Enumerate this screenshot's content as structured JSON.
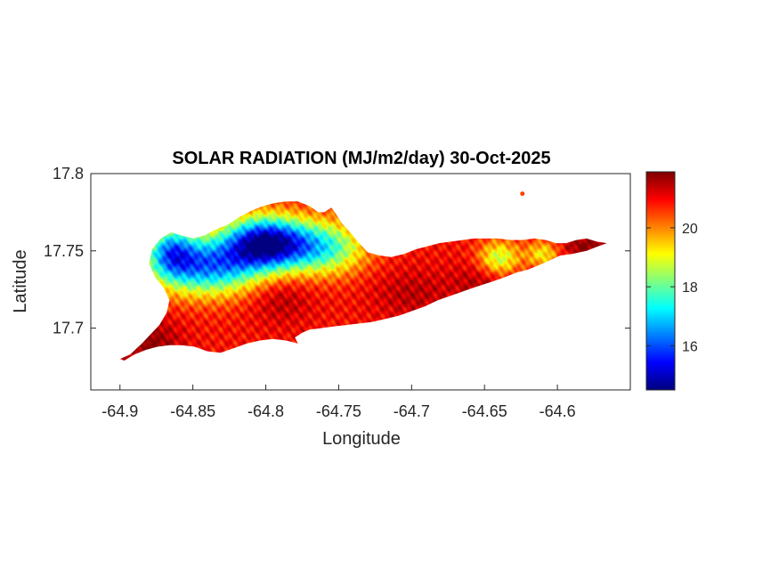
{
  "chart_data": {
    "type": "heatmap",
    "title": "SOLAR RADIATION (MJ/m2/day) 30-Oct-2025",
    "xlabel": "Longitude",
    "ylabel": "Latitude",
    "xlim": [
      -64.92,
      -64.55
    ],
    "ylim": [
      17.66,
      17.8
    ],
    "x_ticks": [
      -64.9,
      -64.85,
      -64.8,
      -64.75,
      -64.7,
      -64.65,
      -64.6
    ],
    "x_tick_labels": [
      "-64.9",
      "-64.85",
      "-64.8",
      "-64.75",
      "-64.7",
      "-64.65",
      "-64.6"
    ],
    "y_ticks": [
      17.7,
      17.75,
      17.8
    ],
    "y_tick_labels": [
      "17.7",
      "17.75",
      "17.8"
    ],
    "colorbar": {
      "colormap": "jet",
      "range": [
        14.5,
        21.9
      ],
      "ticks": [
        16,
        18,
        20
      ],
      "tick_labels": [
        "16",
        "18",
        "20"
      ]
    },
    "grid": false,
    "island_outline": [
      [
        -64.9,
        17.68
      ],
      [
        -64.893,
        17.683
      ],
      [
        -64.885,
        17.69
      ],
      [
        -64.878,
        17.697
      ],
      [
        -64.873,
        17.702
      ],
      [
        -64.868,
        17.71
      ],
      [
        -64.866,
        17.718
      ],
      [
        -64.87,
        17.726
      ],
      [
        -64.876,
        17.733
      ],
      [
        -64.88,
        17.742
      ],
      [
        -64.878,
        17.751
      ],
      [
        -64.872,
        17.758
      ],
      [
        -64.865,
        17.762
      ],
      [
        -64.858,
        17.76
      ],
      [
        -64.85,
        17.758
      ],
      [
        -64.842,
        17.76
      ],
      [
        -64.834,
        17.764
      ],
      [
        -64.826,
        17.767
      ],
      [
        -64.818,
        17.772
      ],
      [
        -64.81,
        17.776
      ],
      [
        -64.802,
        17.779
      ],
      [
        -64.794,
        17.781
      ],
      [
        -64.786,
        17.782
      ],
      [
        -64.778,
        17.782
      ],
      [
        -64.77,
        17.779
      ],
      [
        -64.764,
        17.775
      ],
      [
        -64.76,
        17.775
      ],
      [
        -64.755,
        17.778
      ],
      [
        -64.752,
        17.774
      ],
      [
        -64.748,
        17.768
      ],
      [
        -64.742,
        17.762
      ],
      [
        -64.736,
        17.755
      ],
      [
        -64.73,
        17.749
      ],
      [
        -64.722,
        17.747
      ],
      [
        -64.714,
        17.746
      ],
      [
        -64.705,
        17.748
      ],
      [
        -64.697,
        17.751
      ],
      [
        -64.689,
        17.753
      ],
      [
        -64.681,
        17.755
      ],
      [
        -64.673,
        17.756
      ],
      [
        -64.665,
        17.757
      ],
      [
        -64.657,
        17.758
      ],
      [
        -64.649,
        17.758
      ],
      [
        -64.641,
        17.758
      ],
      [
        -64.632,
        17.757
      ],
      [
        -64.624,
        17.757
      ],
      [
        -64.616,
        17.758
      ],
      [
        -64.608,
        17.757
      ],
      [
        -64.601,
        17.755
      ],
      [
        -64.594,
        17.755
      ],
      [
        -64.587,
        17.757
      ],
      [
        -64.58,
        17.758
      ],
      [
        -64.573,
        17.756
      ],
      [
        -64.566,
        17.755
      ],
      [
        -64.572,
        17.753
      ],
      [
        -64.58,
        17.75
      ],
      [
        -64.59,
        17.748
      ],
      [
        -64.598,
        17.747
      ],
      [
        -64.605,
        17.744
      ],
      [
        -64.612,
        17.741
      ],
      [
        -64.62,
        17.738
      ],
      [
        -64.628,
        17.736
      ],
      [
        -64.636,
        17.733
      ],
      [
        -64.645,
        17.73
      ],
      [
        -64.655,
        17.727
      ],
      [
        -64.664,
        17.724
      ],
      [
        -64.673,
        17.721
      ],
      [
        -64.682,
        17.718
      ],
      [
        -64.691,
        17.714
      ],
      [
        -64.7,
        17.711
      ],
      [
        -64.709,
        17.708
      ],
      [
        -64.718,
        17.706
      ],
      [
        -64.727,
        17.704
      ],
      [
        -64.736,
        17.703
      ],
      [
        -64.745,
        17.702
      ],
      [
        -64.754,
        17.701
      ],
      [
        -64.762,
        17.7
      ],
      [
        -64.77,
        17.699
      ],
      [
        -64.775,
        17.697
      ],
      [
        -64.78,
        17.694
      ],
      [
        -64.778,
        17.69
      ],
      [
        -64.786,
        17.692
      ],
      [
        -64.795,
        17.693
      ],
      [
        -64.804,
        17.692
      ],
      [
        -64.813,
        17.69
      ],
      [
        -64.822,
        17.687
      ],
      [
        -64.831,
        17.684
      ],
      [
        -64.84,
        17.685
      ],
      [
        -64.849,
        17.688
      ],
      [
        -64.858,
        17.689
      ],
      [
        -64.866,
        17.689
      ],
      [
        -64.874,
        17.688
      ],
      [
        -64.882,
        17.686
      ],
      [
        -64.89,
        17.683
      ],
      [
        -64.897,
        17.679
      ],
      [
        -64.9,
        17.68
      ]
    ],
    "islet": {
      "lon": -64.624,
      "lat": 17.787,
      "value": 20.5
    },
    "field_features": [
      {
        "lon": -64.88,
        "lat": 17.69,
        "sigma_lon": 0.015,
        "sigma_lat": 0.012,
        "value": 21.9
      },
      {
        "lon": -64.79,
        "lat": 17.72,
        "sigma_lon": 0.015,
        "sigma_lat": 0.012,
        "value": 21.6
      },
      {
        "lon": -64.7,
        "lat": 17.722,
        "sigma_lon": 0.02,
        "sigma_lat": 0.012,
        "value": 21.5
      },
      {
        "lon": -64.65,
        "lat": 17.73,
        "sigma_lon": 0.015,
        "sigma_lat": 0.01,
        "value": 21.6
      },
      {
        "lon": -64.58,
        "lat": 17.753,
        "sigma_lon": 0.012,
        "sigma_lat": 0.006,
        "value": 21.9
      },
      {
        "lon": -64.8,
        "lat": 17.755,
        "sigma_lon": 0.02,
        "sigma_lat": 0.012,
        "value": 14.8
      },
      {
        "lon": -64.84,
        "lat": 17.74,
        "sigma_lon": 0.025,
        "sigma_lat": 0.013,
        "value": 16.6
      },
      {
        "lon": -64.76,
        "lat": 17.752,
        "sigma_lon": 0.02,
        "sigma_lat": 0.012,
        "value": 17.8
      },
      {
        "lon": -64.865,
        "lat": 17.75,
        "sigma_lon": 0.012,
        "sigma_lat": 0.012,
        "value": 17.6
      },
      {
        "lon": -64.64,
        "lat": 17.745,
        "sigma_lon": 0.01,
        "sigma_lat": 0.008,
        "value": 18.6
      },
      {
        "lon": -64.61,
        "lat": 17.748,
        "sigma_lon": 0.008,
        "sigma_lat": 0.006,
        "value": 19.2
      }
    ],
    "base_value": 20.9
  }
}
